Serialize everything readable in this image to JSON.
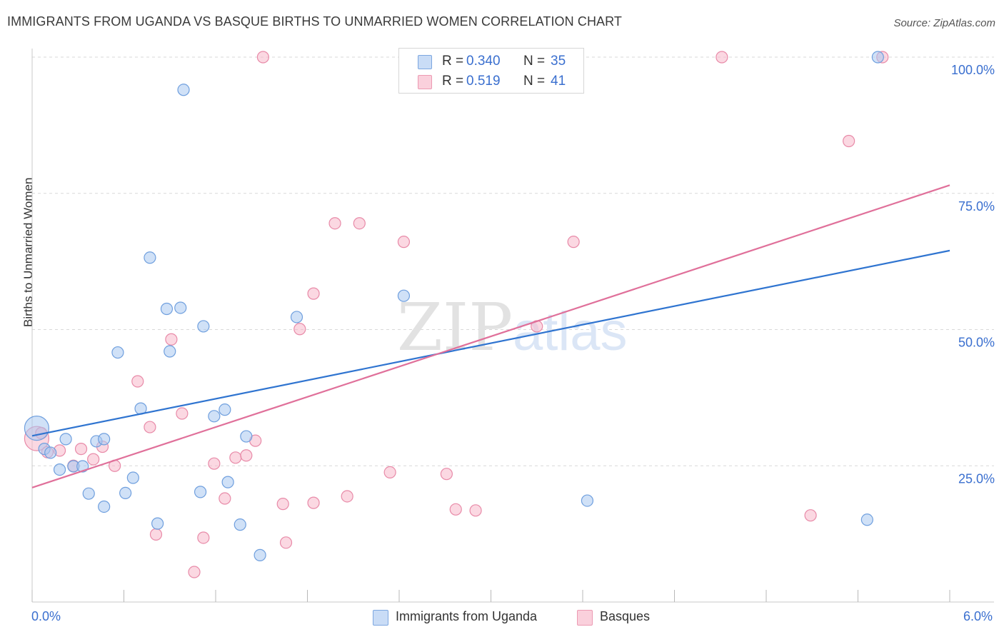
{
  "header": {
    "title": "IMMIGRANTS FROM UGANDA VS BASQUE BIRTHS TO UNMARRIED WOMEN CORRELATION CHART",
    "source": "Source: ZipAtlas.com"
  },
  "watermark": {
    "zip": "ZIP",
    "atlas": "atlas"
  },
  "legend_stats": [
    {
      "r_label": "R =",
      "r_value": "0.340",
      "n_label": "N =",
      "n_value": "35",
      "color": "#a9c8f0"
    },
    {
      "r_label": "R =",
      "r_value": "0.519",
      "n_label": "N =",
      "n_value": "41",
      "color": "#f7b8cb"
    }
  ],
  "colors": {
    "uganda_fill": "#a9c8f0",
    "uganda_stroke": "#6f9fde",
    "uganda_line": "#2f74d0",
    "basques_fill": "#f7b8cb",
    "basques_stroke": "#e88aa8",
    "basques_line": "#e0709a",
    "tick_text": "#3a6fcf",
    "grid": "#d8d8d8"
  },
  "chart_data": {
    "type": "scatter",
    "title": "IMMIGRANTS FROM UGANDA VS BASQUE BIRTHS TO UNMARRIED WOMEN CORRELATION CHART",
    "xlabel": "",
    "ylabel": "Births to Unmarried Women",
    "xlim": [
      0,
      6
    ],
    "ylim": [
      0,
      100
    ],
    "x_tick_labels": [
      "0.0%",
      "6.0%"
    ],
    "y_tick_values": [
      25,
      50,
      75,
      100
    ],
    "y_tick_labels": [
      "25.0%",
      "50.0%",
      "75.0%",
      "100.0%"
    ],
    "grid": true,
    "legend_position": "bottom",
    "series": [
      {
        "name": "Immigrants from Uganda",
        "r": 0.34,
        "n": 35,
        "trend": {
          "x": [
            0,
            6
          ],
          "y": [
            30.5,
            64.5
          ]
        },
        "points": [
          [
            0.03,
            31.9,
            "large"
          ],
          [
            0.08,
            28.1
          ],
          [
            0.12,
            27.4
          ],
          [
            0.18,
            24.3
          ],
          [
            0.22,
            29.9
          ],
          [
            0.27,
            24.9
          ],
          [
            0.33,
            24.9
          ],
          [
            0.37,
            19.9
          ],
          [
            0.42,
            29.5
          ],
          [
            0.47,
            17.5
          ],
          [
            0.47,
            29.9
          ],
          [
            0.56,
            45.8
          ],
          [
            0.61,
            20.0
          ],
          [
            0.66,
            22.8
          ],
          [
            0.71,
            35.5
          ],
          [
            0.77,
            63.2
          ],
          [
            0.82,
            14.4
          ],
          [
            0.88,
            53.8
          ],
          [
            0.9,
            46.0
          ],
          [
            0.97,
            54.0
          ],
          [
            0.99,
            94.0
          ],
          [
            1.1,
            20.2
          ],
          [
            1.12,
            50.6
          ],
          [
            1.19,
            34.1
          ],
          [
            1.26,
            35.3
          ],
          [
            1.28,
            22.0
          ],
          [
            1.36,
            14.2
          ],
          [
            1.4,
            30.4
          ],
          [
            1.49,
            8.6
          ],
          [
            1.73,
            52.3
          ],
          [
            2.43,
            56.2
          ],
          [
            3.04,
            100.0
          ],
          [
            3.63,
            18.6
          ],
          [
            5.46,
            15.1
          ],
          [
            5.53,
            100.0
          ]
        ]
      },
      {
        "name": "Basques",
        "r": 0.519,
        "n": 41,
        "trend": {
          "x": [
            0,
            6
          ],
          "y": [
            21.0,
            76.5
          ]
        },
        "points": [
          [
            0.03,
            30.0,
            "large"
          ],
          [
            0.1,
            27.5
          ],
          [
            0.18,
            27.8
          ],
          [
            0.27,
            25.0
          ],
          [
            0.32,
            28.1
          ],
          [
            0.4,
            26.2
          ],
          [
            0.46,
            28.5
          ],
          [
            0.54,
            25.0
          ],
          [
            0.69,
            40.5
          ],
          [
            0.77,
            32.1
          ],
          [
            0.81,
            12.4
          ],
          [
            0.91,
            48.2
          ],
          [
            0.98,
            34.6
          ],
          [
            1.06,
            5.5
          ],
          [
            1.12,
            11.8
          ],
          [
            1.19,
            25.4
          ],
          [
            1.26,
            19.0
          ],
          [
            1.33,
            26.5
          ],
          [
            1.4,
            26.9
          ],
          [
            1.46,
            29.6
          ],
          [
            1.51,
            100.0
          ],
          [
            1.64,
            18.0
          ],
          [
            1.66,
            10.9
          ],
          [
            1.75,
            50.1
          ],
          [
            1.84,
            56.6
          ],
          [
            1.84,
            18.2
          ],
          [
            1.98,
            69.5
          ],
          [
            2.06,
            19.4
          ],
          [
            2.14,
            69.5
          ],
          [
            2.34,
            23.8
          ],
          [
            2.43,
            66.1
          ],
          [
            2.71,
            23.5
          ],
          [
            2.77,
            17.0
          ],
          [
            2.9,
            16.8
          ],
          [
            3.3,
            50.6
          ],
          [
            3.54,
            66.1
          ],
          [
            4.51,
            100.0
          ],
          [
            5.09,
            15.9
          ],
          [
            5.34,
            84.6
          ],
          [
            5.56,
            100.0
          ],
          [
            0.06,
            31.0
          ]
        ]
      }
    ]
  }
}
